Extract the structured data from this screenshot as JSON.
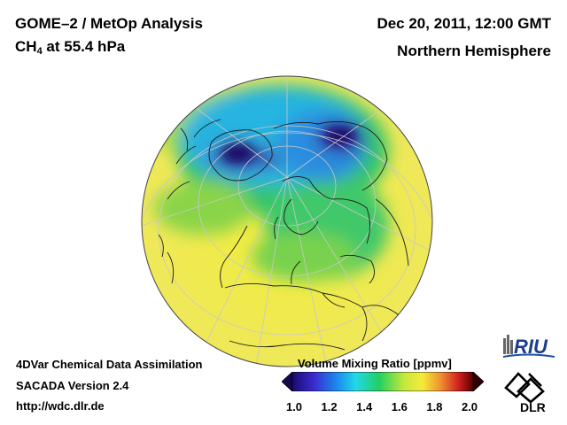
{
  "header": {
    "title_line1": "GOME–2 / MetOp Analysis",
    "species": "CH",
    "species_sub": "4",
    "species_rest": " at 55.4 hPa",
    "date": "Dec 20, 2011, 12:00 GMT",
    "region": "Northern Hemisphere"
  },
  "footer": {
    "line1": "4DVar Chemical Data Assimilation",
    "line2": "SACADA Version 2.4",
    "line3": "http://wdc.dlr.de"
  },
  "colorbar": {
    "title": "Volume Mixing Ratio [ppmv]",
    "ticks": [
      "1.0",
      "1.2",
      "1.4",
      "1.6",
      "1.8",
      "2.0"
    ],
    "range": [
      1.0,
      2.0
    ]
  },
  "logos": {
    "riu": "RIU",
    "dlr": "DLR"
  },
  "colors": {
    "low": "#2a0a6e",
    "mid": "#1ec85a",
    "high": "#f5ee3c",
    "max": "#3a0000"
  }
}
